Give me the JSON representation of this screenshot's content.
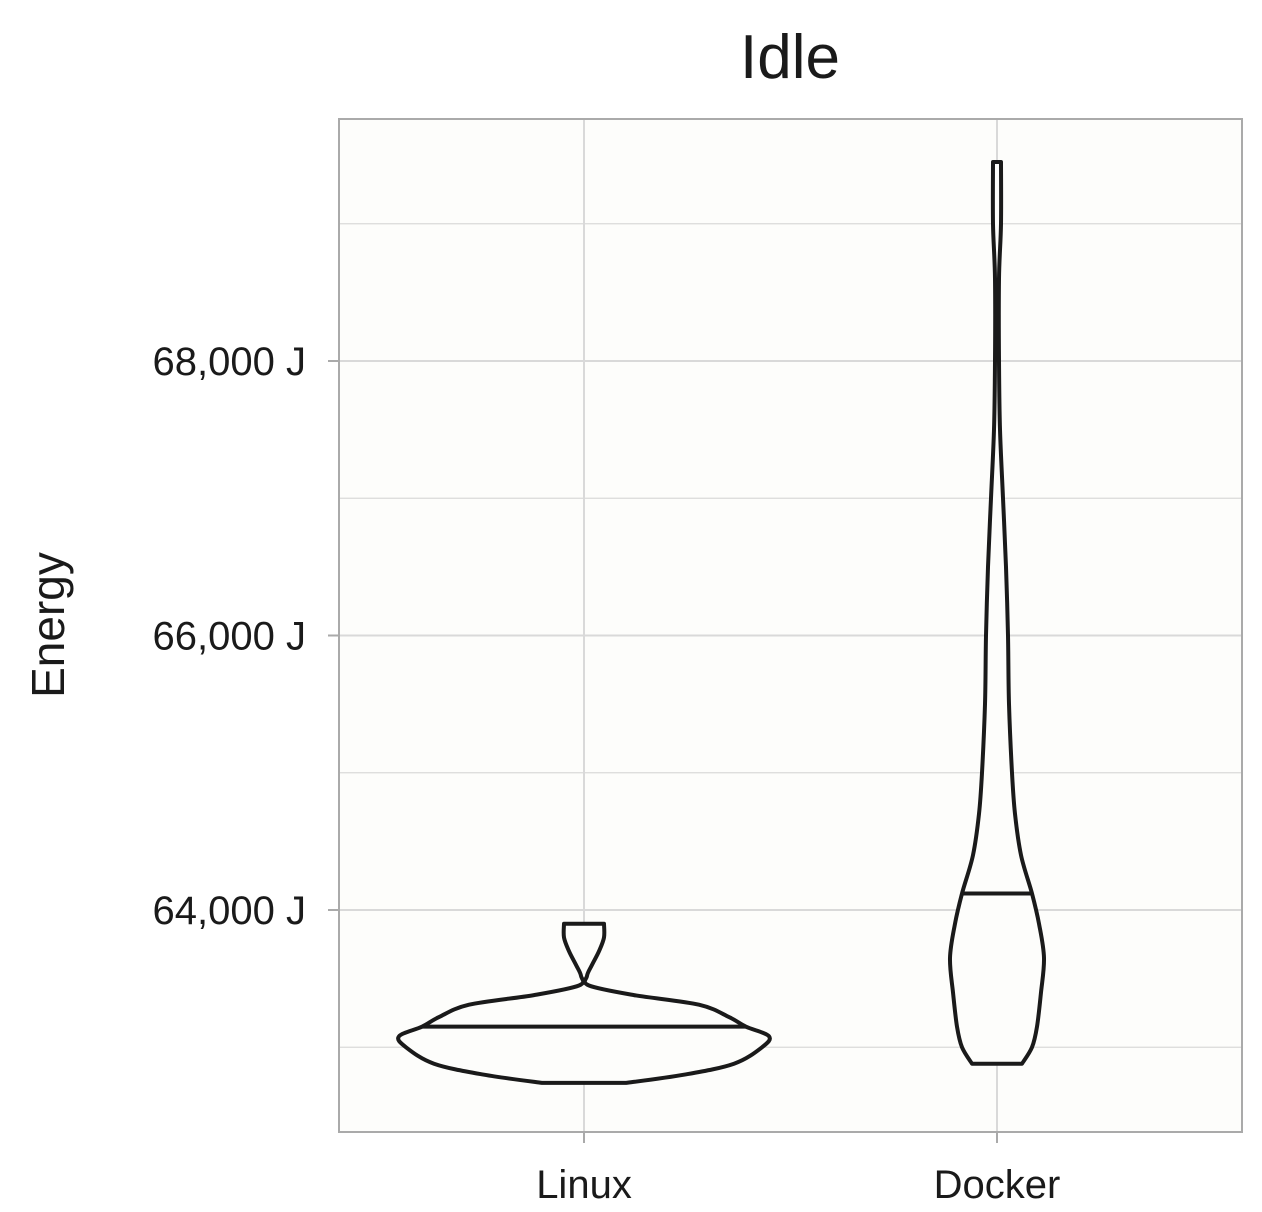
{
  "chart_data": {
    "type": "violin",
    "title": "Idle",
    "xlabel": "",
    "ylabel": "Energy",
    "categories": [
      "Linux",
      "Docker"
    ],
    "y_ticks": [
      64000,
      66000,
      68000
    ],
    "y_tick_labels": [
      "64,000 J",
      "66,000 J",
      "68,000 J"
    ],
    "y_minor_ticks": [
      63000,
      65000,
      67000,
      69000
    ],
    "ylim": [
      62400,
      69800
    ],
    "grid": true,
    "legend": "none",
    "colors": {
      "panel_background": "#fdfdfb",
      "grid": "#d9d9d9",
      "panel_border": "#aaaaaa",
      "outline": "#1a1a1a"
    },
    "violins": [
      {
        "category": "Linux",
        "median": 63150,
        "min": 62740,
        "max": 63900,
        "density_profile": [
          {
            "y": 62740,
            "half_width": 42
          },
          {
            "y": 62800,
            "half_width": 100
          },
          {
            "y": 62880,
            "half_width": 150
          },
          {
            "y": 63000,
            "half_width": 178
          },
          {
            "y": 63080,
            "half_width": 185
          },
          {
            "y": 63150,
            "half_width": 162
          },
          {
            "y": 63220,
            "half_width": 145
          },
          {
            "y": 63310,
            "half_width": 115
          },
          {
            "y": 63380,
            "half_width": 50
          },
          {
            "y": 63450,
            "half_width": 5
          },
          {
            "y": 63520,
            "half_width": 3
          },
          {
            "y": 63600,
            "half_width": 8
          },
          {
            "y": 63700,
            "half_width": 15
          },
          {
            "y": 63800,
            "half_width": 20
          },
          {
            "y": 63900,
            "half_width": 20
          }
        ]
      },
      {
        "category": "Docker",
        "median": 64120,
        "min": 62880,
        "max": 69450,
        "density_profile": [
          {
            "y": 62880,
            "half_width": 25
          },
          {
            "y": 63000,
            "half_width": 35
          },
          {
            "y": 63150,
            "half_width": 40
          },
          {
            "y": 63400,
            "half_width": 44
          },
          {
            "y": 63650,
            "half_width": 47
          },
          {
            "y": 63900,
            "half_width": 42
          },
          {
            "y": 64120,
            "half_width": 35
          },
          {
            "y": 64400,
            "half_width": 24
          },
          {
            "y": 64700,
            "half_width": 18
          },
          {
            "y": 65000,
            "half_width": 15
          },
          {
            "y": 65500,
            "half_width": 12
          },
          {
            "y": 66000,
            "half_width": 11
          },
          {
            "y": 66500,
            "half_width": 9
          },
          {
            "y": 67000,
            "half_width": 6
          },
          {
            "y": 67500,
            "half_width": 3
          },
          {
            "y": 68000,
            "half_width": 2
          },
          {
            "y": 68600,
            "half_width": 2
          },
          {
            "y": 69000,
            "half_width": 4
          },
          {
            "y": 69450,
            "half_width": 4
          }
        ]
      }
    ]
  }
}
